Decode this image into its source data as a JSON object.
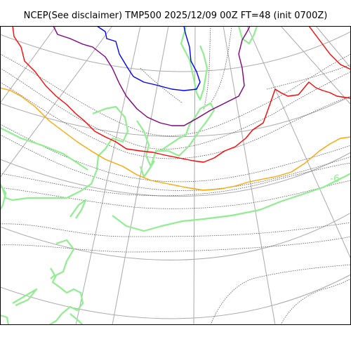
{
  "title": "NCEP(See disclaimer) TMP500 2025/12/09 00Z FT=48 (init 0700Z)",
  "contour_label": "-6",
  "colors": {
    "background": "#ffffff",
    "frame": "#000000",
    "graticule": "#aaaaaa",
    "isotherm": "#555555",
    "coastline": "#90ee90",
    "contour_blue": "#0000ff",
    "contour_purple": "#800080",
    "contour_red": "#ff0000",
    "contour_orange": "#ffa500",
    "contour_green": "#90ee90"
  }
}
